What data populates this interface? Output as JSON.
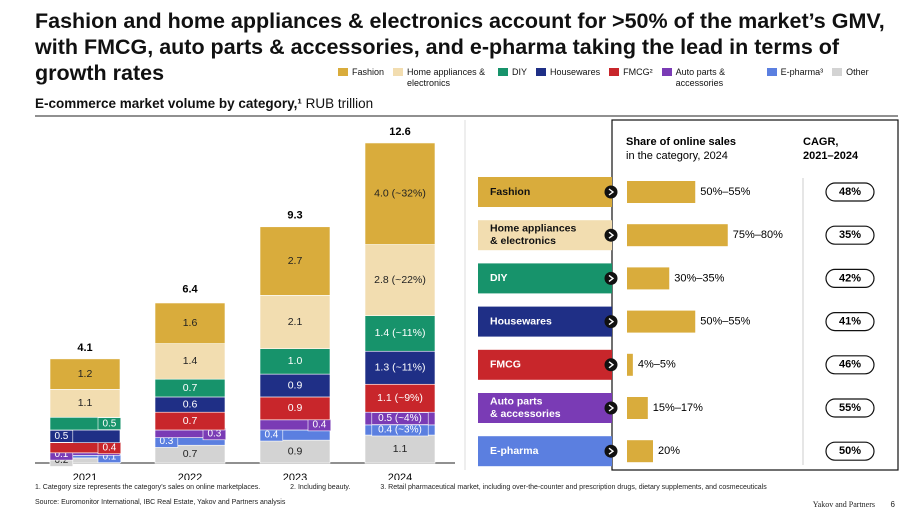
{
  "header": {
    "title": "Fashion and home appliances & electronics account for >50% of the market’s GMV, with FMCG, auto parts & accessories, and e-pharma taking the lead in terms of growth rates",
    "subtitle": "E-commerce market volume by category,¹",
    "unit": "RUB trillion"
  },
  "chart_data": {
    "type": "stacked-bar",
    "categories": [
      "2021",
      "2022",
      "2023",
      "2024"
    ],
    "totals": [
      4.1,
      6.4,
      9.3,
      12.6
    ],
    "series": [
      {
        "name": "Other",
        "color": "#d3d3d3",
        "values": [
          0.2,
          0.7,
          0.9,
          1.1
        ],
        "value_labels": [
          "0.2",
          "0.7",
          "0.9",
          "1.1"
        ]
      },
      {
        "name": "E-pharma³",
        "color": "#5b7fe0",
        "values": [
          0.1,
          0.3,
          0.4,
          0.4
        ],
        "value_labels": [
          "0.1",
          "0.3",
          "0.4",
          "0.4 (~3%)"
        ]
      },
      {
        "name": "Auto parts & accessories",
        "color": "#7a3bb5",
        "values": [
          0.1,
          0.3,
          0.4,
          0.5
        ],
        "value_labels": [
          "0.1",
          "0.3",
          "0.4",
          "0.5 (~4%)"
        ]
      },
      {
        "name": "FMCG²",
        "color": "#c8262b",
        "values": [
          0.4,
          0.7,
          0.9,
          1.1
        ],
        "value_labels": [
          "0.4",
          "0.7",
          "0.9",
          "1.1 (~9%)"
        ]
      },
      {
        "name": "Housewares",
        "color": "#1f2f86",
        "values": [
          0.5,
          0.6,
          0.9,
          1.3
        ],
        "value_labels": [
          "0.5",
          "0.6",
          "0.9",
          "1.3 (~11%)"
        ]
      },
      {
        "name": "DIY",
        "color": "#17936b",
        "values": [
          0.5,
          0.7,
          1,
          1.4
        ],
        "value_labels": [
          "0.5",
          "0.7",
          "1.0",
          "1.4 (~11%)"
        ]
      },
      {
        "name": "Home appliances & electronics",
        "color": "#f2ddb0",
        "values": [
          1.1,
          1.4,
          2.1,
          2.8
        ],
        "value_labels": [
          "1.1",
          "1.4",
          "2.1",
          "2.8 (~22%)"
        ]
      },
      {
        "name": "Fashion",
        "color": "#d9ac3c",
        "values": [
          1.2,
          1.6,
          2.7,
          4
        ],
        "value_labels": [
          "1.2",
          "1.6",
          "2.7",
          "4.0 (~32%)"
        ]
      }
    ]
  },
  "panel": {
    "share_header": [
      "Share of online sales",
      "in the category, 2024"
    ],
    "cagr_header": [
      "CAGR,",
      "2021–2024"
    ],
    "rows": [
      {
        "label": [
          "Fashion"
        ],
        "color": "#d9ac3c",
        "share_low": 50,
        "share_high": 55,
        "share_label": "50%–55%",
        "cagr": 48,
        "cagr_label": "48%"
      },
      {
        "label": [
          "Home appliances",
          "& electronics"
        ],
        "color": "#f2ddb0",
        "share_low": 75,
        "share_high": 80,
        "share_label": "75%–80%",
        "cagr": 35,
        "cagr_label": "35%"
      },
      {
        "label": [
          "DIY"
        ],
        "color": "#17936b",
        "share_low": 30,
        "share_high": 35,
        "share_label": "30%–35%",
        "cagr": 42,
        "cagr_label": "42%"
      },
      {
        "label": [
          "Housewares"
        ],
        "color": "#1f2f86",
        "share_low": 50,
        "share_high": 55,
        "share_label": "50%–55%",
        "cagr": 41,
        "cagr_label": "41%"
      },
      {
        "label": [
          "FMCG"
        ],
        "color": "#c8262b",
        "share_low": 4,
        "share_high": 5,
        "share_label": "4%–5%",
        "cagr": 46,
        "cagr_label": "46%"
      },
      {
        "label": [
          "Auto parts",
          "& accessories"
        ],
        "color": "#7a3bb5",
        "share_low": 15,
        "share_high": 17,
        "share_label": "15%–17%",
        "cagr": 55,
        "cagr_label": "55%"
      },
      {
        "label": [
          "E-pharma"
        ],
        "color": "#5b7fe0",
        "share_low": 20,
        "share_high": 20,
        "share_label": "20%",
        "cagr": 50,
        "cagr_label": "50%"
      }
    ]
  },
  "footer": {
    "notes": [
      "1.   Category size represents the category’s sales on online marketplaces.",
      "2. Including beauty.",
      "3.   Retail pharmaceutical market, including over-the-counter and prescription drugs, dietary supplements, and cosmeceuticals"
    ],
    "source": "Source: Euromonitor International, IBC Real Estate, Yakov and Partners analysis",
    "brand": "Yakov and Partners",
    "page": "6"
  }
}
